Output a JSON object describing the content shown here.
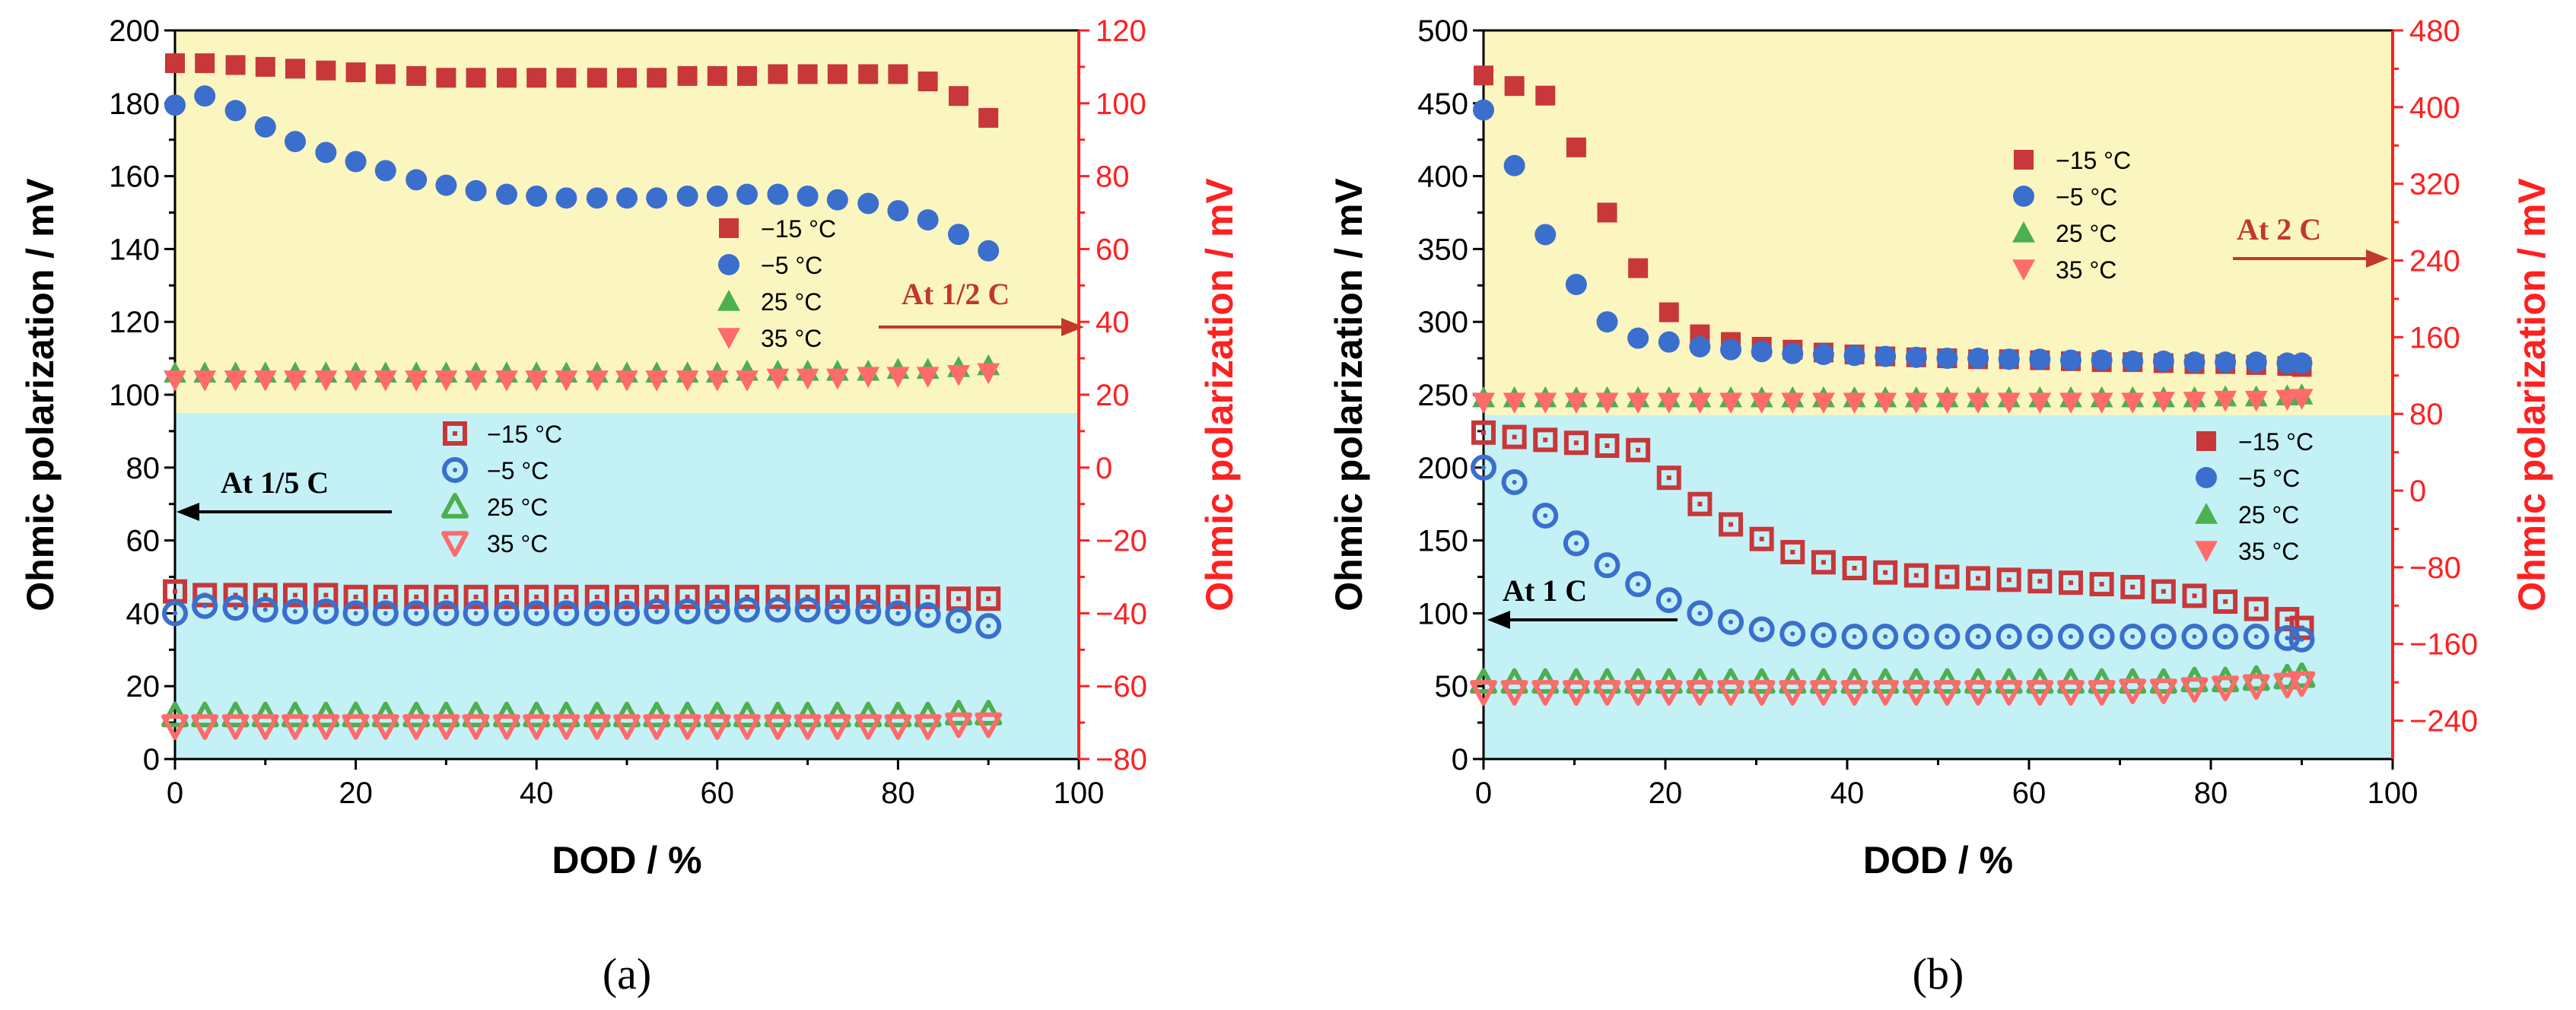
{
  "chart_data": [
    {
      "type": "scatter",
      "panel_label": "(a)",
      "xlabel": "DOD / %",
      "ylabel": "Ohmic polarization / mV",
      "ylabel_right": "Ohmic polarization / mV",
      "xlim": [
        0,
        100
      ],
      "ylim": [
        0,
        200
      ],
      "ylim_right": [
        -80,
        120
      ],
      "x_ticks": [
        "0",
        "20",
        "40",
        "60",
        "80",
        "100"
      ],
      "y_ticks": [
        "0",
        "20",
        "40",
        "60",
        "80",
        "100",
        "120",
        "140",
        "160",
        "180",
        "200"
      ],
      "y_ticks_right": [
        "−80",
        "−60",
        "−40",
        "−20",
        "0",
        "20",
        "40",
        "60",
        "80",
        "100",
        "120"
      ],
      "band_split": 95,
      "colors": {
        "top_band": "#fbf6c0",
        "bottom_band": "#c4f1f6",
        "red_axis": "#ff2020",
        "arrow_right": "#c0392b",
        "arrow_left": "#000000"
      },
      "annotation_right": "At 1/2 C",
      "annotation_left": "At 1/5 C",
      "legend_filled": [
        "−15 °C",
        "−5 °C",
        "25 °C",
        "35 °C"
      ],
      "legend_hollow": [
        "−15 °C",
        "−5 °C",
        "25 °C",
        "35 °C"
      ],
      "x": [
        0,
        3.3,
        6.7,
        10,
        13.3,
        16.7,
        20,
        23.3,
        26.7,
        30,
        33.3,
        36.7,
        40,
        43.3,
        46.7,
        50,
        53.3,
        56.7,
        60,
        63.3,
        66.7,
        70,
        73.3,
        76.7,
        80,
        83.3,
        86.7,
        90
      ],
      "series_right": [
        {
          "name": "−15 °C",
          "marker": "square",
          "color": "#c8373a",
          "values": [
            111,
            111,
            110.5,
            110,
            109.5,
            109,
            108.5,
            108,
            107.5,
            107,
            107,
            107,
            107,
            107,
            107,
            107,
            107,
            107.5,
            107.5,
            107.5,
            108,
            108,
            108,
            108,
            108,
            106,
            102,
            96
          ]
        },
        {
          "name": "−5 °C",
          "marker": "circle",
          "color": "#3a6fcd",
          "values": [
            99.5,
            102,
            98,
            93.5,
            89.5,
            86.5,
            84,
            81.5,
            79,
            77.5,
            76,
            75,
            74.5,
            74,
            74,
            74,
            74,
            74.5,
            74.5,
            75,
            75,
            74.5,
            73.5,
            72.5,
            70.5,
            68,
            64,
            59.5
          ]
        },
        {
          "name": "25 °C",
          "marker": "triangle-up",
          "color": "#4caf50",
          "values": [
            26,
            26,
            26,
            26,
            26,
            26,
            26,
            26,
            26,
            26,
            26,
            26,
            26,
            26,
            26,
            26,
            26,
            26,
            26,
            26.5,
            26.5,
            26.5,
            26.5,
            26.5,
            27,
            27,
            27.5,
            28
          ]
        },
        {
          "name": "35 °C",
          "marker": "triangle-down",
          "color": "#ff6b6b",
          "values": [
            24,
            24,
            24,
            24,
            24,
            24,
            24,
            24,
            24,
            24,
            24,
            24,
            24,
            24,
            24,
            24,
            24,
            24,
            24,
            24,
            24.5,
            24.5,
            24.5,
            25,
            25,
            25,
            25.5,
            26
          ]
        }
      ],
      "series_left": [
        {
          "name": "−15 °C",
          "marker": "square-open",
          "color": "#c8373a",
          "values": [
            46,
            45,
            45,
            45,
            45,
            45,
            44.5,
            44.5,
            44.5,
            44.5,
            44.5,
            44.5,
            44.5,
            44.5,
            44.5,
            44.5,
            44.5,
            44.5,
            44.5,
            44.5,
            44.5,
            44.5,
            44.5,
            44.5,
            44.5,
            44.5,
            44,
            44
          ]
        },
        {
          "name": "−5 °C",
          "marker": "circle-open",
          "color": "#3a6fcd",
          "values": [
            40,
            42,
            41.5,
            41,
            40.5,
            40.5,
            40,
            40,
            40,
            40,
            40,
            40,
            40,
            40,
            40,
            40,
            40.5,
            40.5,
            40.5,
            41,
            41,
            41,
            40.5,
            40.5,
            40,
            39.5,
            38,
            36.5
          ]
        },
        {
          "name": "25 °C",
          "marker": "triangle-up-open",
          "color": "#4caf50",
          "values": [
            12,
            12,
            12,
            12,
            12,
            12,
            12,
            12,
            12,
            12,
            12,
            12,
            12,
            12,
            12,
            12,
            12,
            12,
            12,
            12,
            12,
            12,
            12,
            12,
            12,
            12,
            12.5,
            12.5
          ]
        },
        {
          "name": "35 °C",
          "marker": "triangle-down-open",
          "color": "#ff6b6b",
          "values": [
            9,
            9,
            9,
            9,
            9,
            9,
            9,
            9,
            9,
            9,
            9,
            9,
            9,
            9,
            9,
            9,
            9,
            9,
            9,
            9,
            9,
            9,
            9,
            9,
            9,
            9,
            9.5,
            9.5
          ]
        }
      ]
    },
    {
      "type": "scatter",
      "panel_label": "(b)",
      "xlabel": "DOD / %",
      "ylabel": "Ohmic polarization / mV",
      "ylabel_right": "Ohmic polarization / mV",
      "xlim": [
        0,
        100
      ],
      "ylim": [
        0,
        500
      ],
      "ylim_right": [
        -280,
        480
      ],
      "x_ticks": [
        "0",
        "20",
        "40",
        "60",
        "80",
        "100"
      ],
      "y_ticks": [
        "0",
        "50",
        "100",
        "150",
        "200",
        "250",
        "300",
        "350",
        "400",
        "450",
        "500"
      ],
      "y_ticks_right": [
        "−240",
        "−160",
        "−80",
        "0",
        "80",
        "160",
        "240",
        "320",
        "400",
        "480"
      ],
      "y_ticks_right_values": [
        -240,
        -160,
        -80,
        0,
        80,
        160,
        240,
        320,
        400,
        480
      ],
      "band_split": 236,
      "colors": {
        "top_band": "#fbf6c0",
        "bottom_band": "#c4f1f6",
        "red_axis": "#ff2020",
        "arrow_right": "#c0392b",
        "arrow_left": "#000000"
      },
      "annotation_right": "At 2 C",
      "annotation_left": "At 1 C",
      "legend_filled": [
        "−15 °C",
        "−5 °C",
        "25 °C",
        "35 °C"
      ],
      "legend_lower": [
        "−15 °C",
        "−5 °C",
        "25 °C",
        "35 °C"
      ],
      "x": [
        0,
        3.4,
        6.8,
        10.2,
        13.6,
        17,
        20.4,
        23.8,
        27.2,
        30.6,
        34,
        37.4,
        40.8,
        44.2,
        47.6,
        51,
        54.4,
        57.8,
        61.2,
        64.6,
        68,
        71.4,
        74.8,
        78.2,
        81.6,
        85,
        88.4,
        90
      ],
      "series_right": [
        {
          "name": "−15 °C",
          "marker": "square",
          "color": "#c8373a",
          "values": [
            433,
            422,
            412,
            358,
            290,
            232,
            186,
            163,
            155,
            150,
            147,
            144,
            142,
            140,
            139,
            138,
            137,
            137,
            136,
            135,
            134,
            134,
            133,
            132,
            132,
            131,
            130,
            129
          ]
        },
        {
          "name": "−5 °C",
          "marker": "circle",
          "color": "#3a6fcd",
          "values": [
            397,
            339,
            267,
            215,
            176,
            159,
            155,
            150,
            147,
            145,
            143,
            142,
            141,
            140,
            139,
            138,
            138,
            137,
            137,
            136,
            136,
            135,
            135,
            134,
            134,
            134,
            133,
            133
          ]
        },
        {
          "name": "25 °C",
          "marker": "triangle-up",
          "color": "#4caf50",
          "values": [
            97,
            97,
            97,
            97,
            97,
            97,
            97,
            97,
            97,
            97,
            97,
            97,
            97,
            97,
            97,
            97,
            97,
            97,
            97,
            97,
            97,
            97,
            97,
            97,
            98,
            98,
            99,
            100
          ]
        },
        {
          "name": "35 °C",
          "marker": "triangle-down",
          "color": "#ff6b6b",
          "values": [
            92,
            92,
            92,
            92,
            92,
            92,
            92,
            92,
            92,
            92,
            92,
            92,
            92,
            92,
            92,
            92,
            92,
            92,
            92,
            92,
            92,
            92,
            93,
            93,
            94,
            94,
            95,
            96
          ]
        }
      ],
      "series_left": [
        {
          "name": "−15 °C",
          "marker": "square-open",
          "color": "#c8373a",
          "values": [
            224,
            221,
            219,
            217,
            215,
            212,
            193,
            175,
            161,
            151,
            142,
            135,
            131,
            128,
            126,
            125,
            124,
            123,
            122,
            121,
            120,
            118,
            115,
            112,
            108,
            103,
            96,
            90
          ]
        },
        {
          "name": "−5 °C",
          "marker": "circle-open",
          "color": "#3a6fcd",
          "values": [
            200,
            190,
            167,
            148,
            133,
            120,
            109,
            100,
            94,
            89,
            86,
            85,
            84,
            84,
            84,
            84,
            84,
            84,
            84,
            84,
            84,
            84,
            84,
            84,
            84,
            84,
            83,
            82
          ]
        },
        {
          "name": "25 °C",
          "marker": "triangle-up-open",
          "color": "#4caf50",
          "values": [
            53,
            53,
            53,
            53,
            53,
            53,
            53,
            53,
            53,
            53,
            53,
            53,
            53,
            53,
            53,
            53,
            53,
            53,
            53,
            53,
            53,
            53,
            53,
            54,
            54,
            55,
            56,
            57
          ]
        },
        {
          "name": "35 °C",
          "marker": "triangle-down-open",
          "color": "#ff6b6b",
          "values": [
            46,
            46,
            46,
            46,
            46,
            46,
            46,
            46,
            46,
            46,
            46,
            46,
            46,
            46,
            46,
            46,
            46,
            46,
            46,
            46,
            46,
            47,
            47,
            48,
            49,
            50,
            51,
            52
          ]
        }
      ]
    }
  ]
}
